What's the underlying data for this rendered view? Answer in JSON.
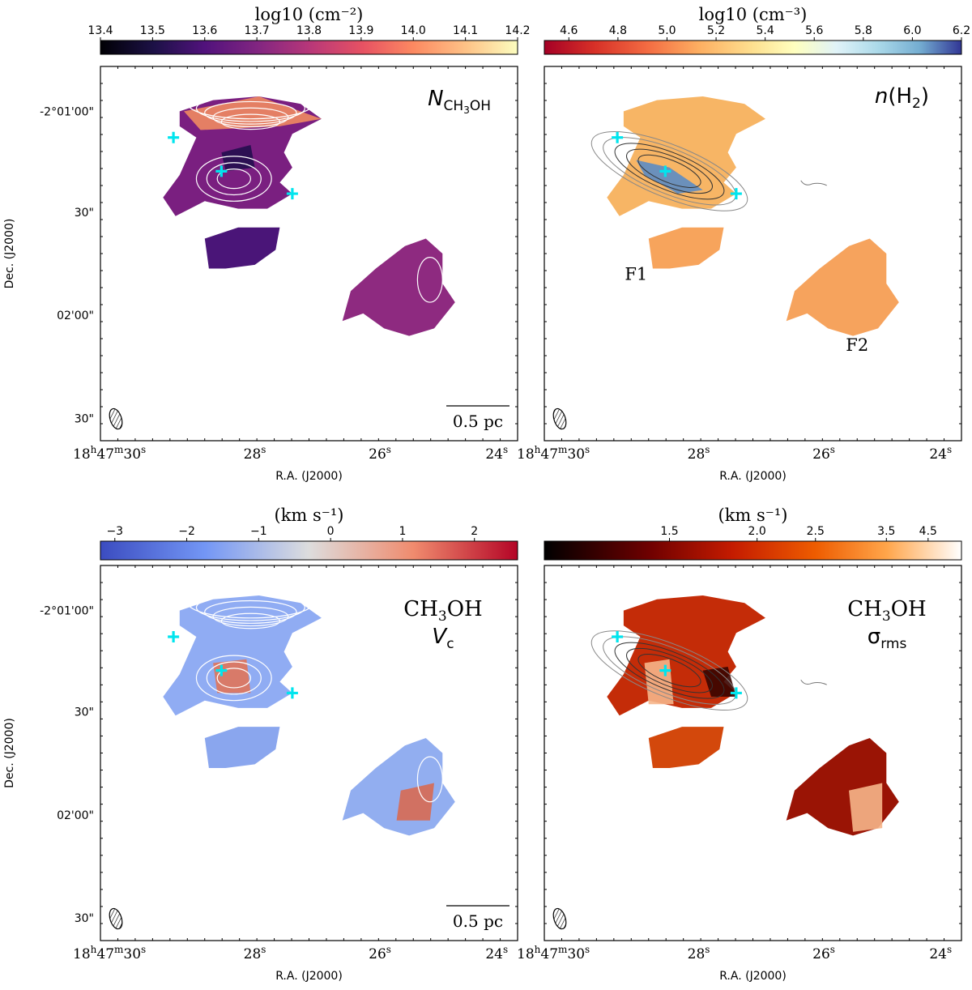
{
  "figure": {
    "xlabel": "R.A. (J2000)",
    "ylabel": "Dec. (J2000)",
    "ra_ticks": [
      {
        "h": "18",
        "m": "47",
        "s": "30"
      },
      {
        "s": "28"
      },
      {
        "s": "26"
      },
      {
        "s": "24"
      }
    ],
    "dec_ticks": [
      "-2°01'00\"",
      "30\"",
      "02'00\"",
      "30\""
    ],
    "scalebar_label": "0.5 pc",
    "colors": {
      "cross": "#00e5ee",
      "frame": "#000000"
    }
  },
  "chart_data": [
    {
      "type": "heatmap",
      "panel": "top-left",
      "title": "N(CH3OH)",
      "title_main": "N",
      "title_sub": "CH",
      "title_sub2": "3",
      "title_sub3": "OH",
      "colorbar": {
        "label": "log10 (cm⁻²)",
        "ticks": [
          "13.4",
          "13.5",
          "13.6",
          "13.7",
          "13.8",
          "13.9",
          "14.0",
          "14.1",
          "14.2"
        ],
        "range": [
          13.4,
          14.2
        ],
        "colormap": "magma"
      },
      "contour_color": "white",
      "crosses": [
        {
          "ra_s": 29.1,
          "dec_off": 0.22
        },
        {
          "ra_s": 28.0,
          "dec_off": 0.35
        },
        {
          "ra_s": 26.6,
          "dec_off": 0.43
        }
      ]
    },
    {
      "type": "heatmap",
      "panel": "top-right",
      "title": "n(H2)",
      "title_main": "n",
      "title_rest": "(H",
      "title_sub": "2",
      "title_end": ")",
      "colorbar": {
        "label": "log10 (cm⁻³)",
        "ticks": [
          "4.6",
          "4.8",
          "5.0",
          "5.2",
          "5.4",
          "5.6",
          "5.8",
          "6.0",
          "6.2"
        ],
        "range": [
          4.5,
          6.2
        ],
        "colormap": "RdYlBu"
      },
      "contour_color": "grey",
      "annotations": [
        "F1",
        "F2"
      ],
      "crosses": [
        {
          "ra_s": 29.1,
          "dec_off": 0.22
        },
        {
          "ra_s": 28.0,
          "dec_off": 0.35
        },
        {
          "ra_s": 26.6,
          "dec_off": 0.43
        }
      ]
    },
    {
      "type": "heatmap",
      "panel": "bottom-left",
      "title": "CH3OH Vc",
      "title_line1_a": "CH",
      "title_line1_b": "3",
      "title_line1_c": "OH",
      "title_line2_main": "V",
      "title_line2_sub": "c",
      "colorbar": {
        "label": "(km s⁻¹)",
        "ticks": [
          "−3",
          "−2",
          "−1",
          "0",
          "1",
          "2"
        ],
        "range": [
          -3.2,
          2.6
        ],
        "colormap": "coolwarm"
      },
      "contour_color": "white",
      "crosses": [
        {
          "ra_s": 29.1,
          "dec_off": 0.22
        },
        {
          "ra_s": 28.0,
          "dec_off": 0.35
        },
        {
          "ra_s": 26.6,
          "dec_off": 0.43
        }
      ]
    },
    {
      "type": "heatmap",
      "panel": "bottom-right",
      "title": "CH3OH σrms",
      "title_line1_a": "CH",
      "title_line1_b": "3",
      "title_line1_c": "OH",
      "title_line2_main": "σ",
      "title_line2_sub": "rms",
      "colorbar": {
        "label": "(km s⁻¹)",
        "ticks": [
          "1.5",
          "2.0",
          "2.5",
          "3.5",
          "4.5"
        ],
        "range": [
          1.0,
          6.0
        ],
        "colormap": "gist_heat"
      },
      "contour_color": "grey",
      "crosses": [
        {
          "ra_s": 29.1,
          "dec_off": 0.22
        },
        {
          "ra_s": 28.0,
          "dec_off": 0.35
        },
        {
          "ra_s": 26.6,
          "dec_off": 0.43
        }
      ]
    }
  ]
}
